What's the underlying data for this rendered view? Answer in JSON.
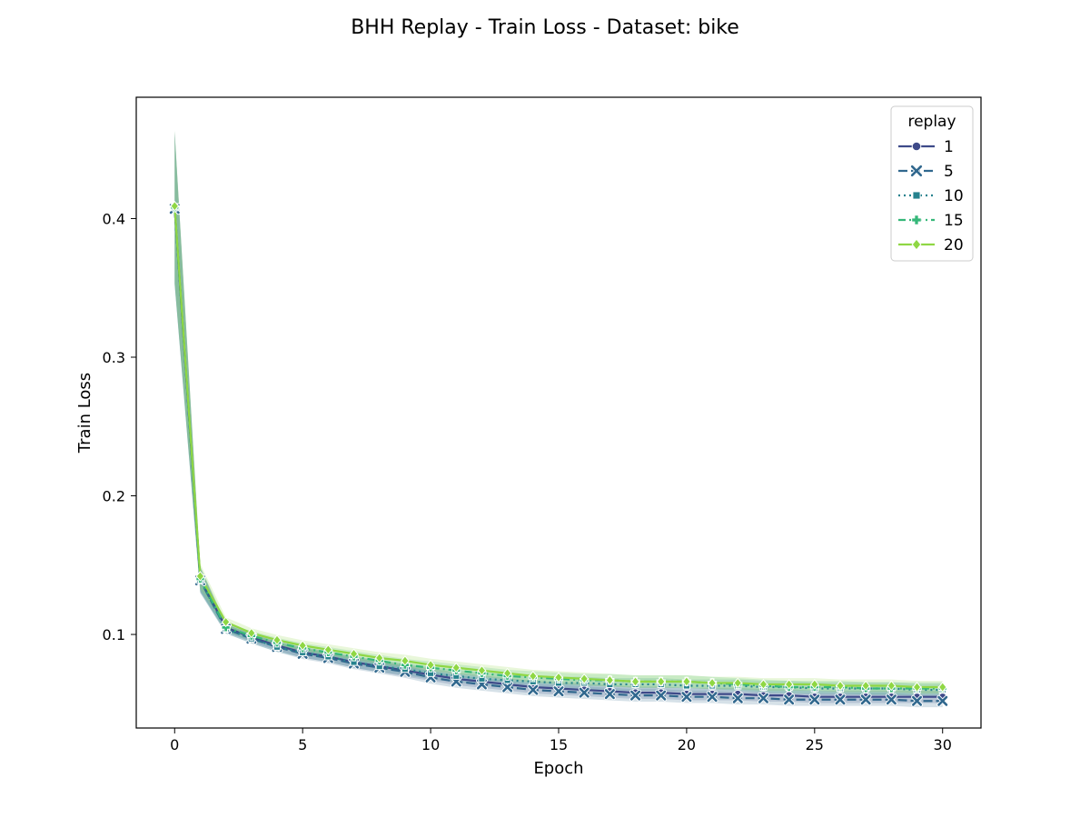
{
  "chart_data": {
    "type": "line",
    "title": "BHH Replay - Train Loss - Dataset: bike",
    "xlabel": "Epoch",
    "ylabel": "Train Loss",
    "xlim": [
      -1.5,
      31.5
    ],
    "ylim": [
      0.0325,
      0.4875
    ],
    "xticks": [
      0,
      5,
      10,
      15,
      20,
      25,
      30
    ],
    "yticks": [
      0.1,
      0.2,
      0.3,
      0.4
    ],
    "xtick_labels": [
      "0",
      "5",
      "10",
      "15",
      "20",
      "25",
      "30"
    ],
    "ytick_labels": [
      "0.1",
      "0.2",
      "0.3",
      "0.4"
    ],
    "grid": false,
    "legend": {
      "title": "replay",
      "placement": "top-right"
    },
    "x": [
      0,
      1,
      2,
      3,
      4,
      5,
      6,
      7,
      8,
      9,
      10,
      11,
      12,
      13,
      14,
      15,
      16,
      17,
      18,
      19,
      20,
      21,
      22,
      23,
      24,
      25,
      26,
      27,
      28,
      29,
      30
    ],
    "series": [
      {
        "name": "1",
        "color": "#3e4a89",
        "dash": "",
        "marker": "circle",
        "values": [
          0.408,
          0.14,
          0.105,
          0.098,
          0.092,
          0.087,
          0.084,
          0.08,
          0.077,
          0.074,
          0.071,
          0.068,
          0.066,
          0.064,
          0.062,
          0.061,
          0.06,
          0.059,
          0.058,
          0.058,
          0.057,
          0.057,
          0.057,
          0.056,
          0.056,
          0.055,
          0.055,
          0.055,
          0.055,
          0.055,
          0.055
        ]
      },
      {
        "name": "5",
        "color": "#31688e",
        "dash": "10 4",
        "marker": "x",
        "values": [
          0.407,
          0.139,
          0.104,
          0.097,
          0.091,
          0.086,
          0.083,
          0.079,
          0.076,
          0.073,
          0.069,
          0.066,
          0.064,
          0.062,
          0.06,
          0.059,
          0.058,
          0.057,
          0.056,
          0.056,
          0.055,
          0.055,
          0.054,
          0.054,
          0.053,
          0.053,
          0.053,
          0.053,
          0.053,
          0.052,
          0.052
        ]
      },
      {
        "name": "10",
        "color": "#26828e",
        "dash": "2 4",
        "marker": "square",
        "values": [
          0.408,
          0.139,
          0.104,
          0.097,
          0.091,
          0.087,
          0.084,
          0.08,
          0.077,
          0.075,
          0.072,
          0.07,
          0.068,
          0.067,
          0.066,
          0.065,
          0.065,
          0.064,
          0.064,
          0.064,
          0.063,
          0.063,
          0.063,
          0.062,
          0.062,
          0.061,
          0.061,
          0.061,
          0.061,
          0.06,
          0.06
        ]
      },
      {
        "name": "15",
        "color": "#35b779",
        "dash": "8 4 2 4",
        "marker": "plus",
        "values": [
          0.408,
          0.14,
          0.105,
          0.099,
          0.094,
          0.09,
          0.087,
          0.084,
          0.081,
          0.078,
          0.076,
          0.074,
          0.072,
          0.07,
          0.069,
          0.068,
          0.067,
          0.067,
          0.066,
          0.066,
          0.066,
          0.065,
          0.064,
          0.063,
          0.062,
          0.062,
          0.062,
          0.061,
          0.061,
          0.061,
          0.061
        ]
      },
      {
        "name": "20",
        "color": "#8fd744",
        "dash": "",
        "marker": "diamond",
        "values": [
          0.409,
          0.142,
          0.109,
          0.101,
          0.096,
          0.092,
          0.089,
          0.086,
          0.083,
          0.081,
          0.078,
          0.076,
          0.074,
          0.072,
          0.07,
          0.069,
          0.068,
          0.067,
          0.066,
          0.066,
          0.066,
          0.065,
          0.065,
          0.064,
          0.064,
          0.064,
          0.063,
          0.063,
          0.063,
          0.062,
          0.062
        ]
      }
    ]
  }
}
